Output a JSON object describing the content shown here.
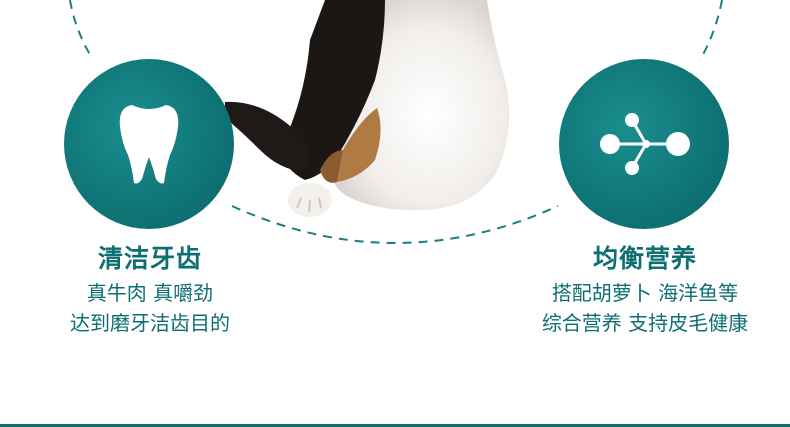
{
  "features": {
    "left": {
      "icon": "tooth-icon",
      "title": "清洁牙齿",
      "line1": "真牛肉 真嚼劲",
      "line2": "达到磨牙洁齿目的"
    },
    "right": {
      "icon": "molecule-icon",
      "title": "均衡营养",
      "line1": "搭配胡萝卜 海洋鱼等",
      "line2": "综合营养 支持皮毛健康"
    }
  },
  "colors": {
    "accent": "#0e6f72",
    "circle": "#0f7476"
  }
}
